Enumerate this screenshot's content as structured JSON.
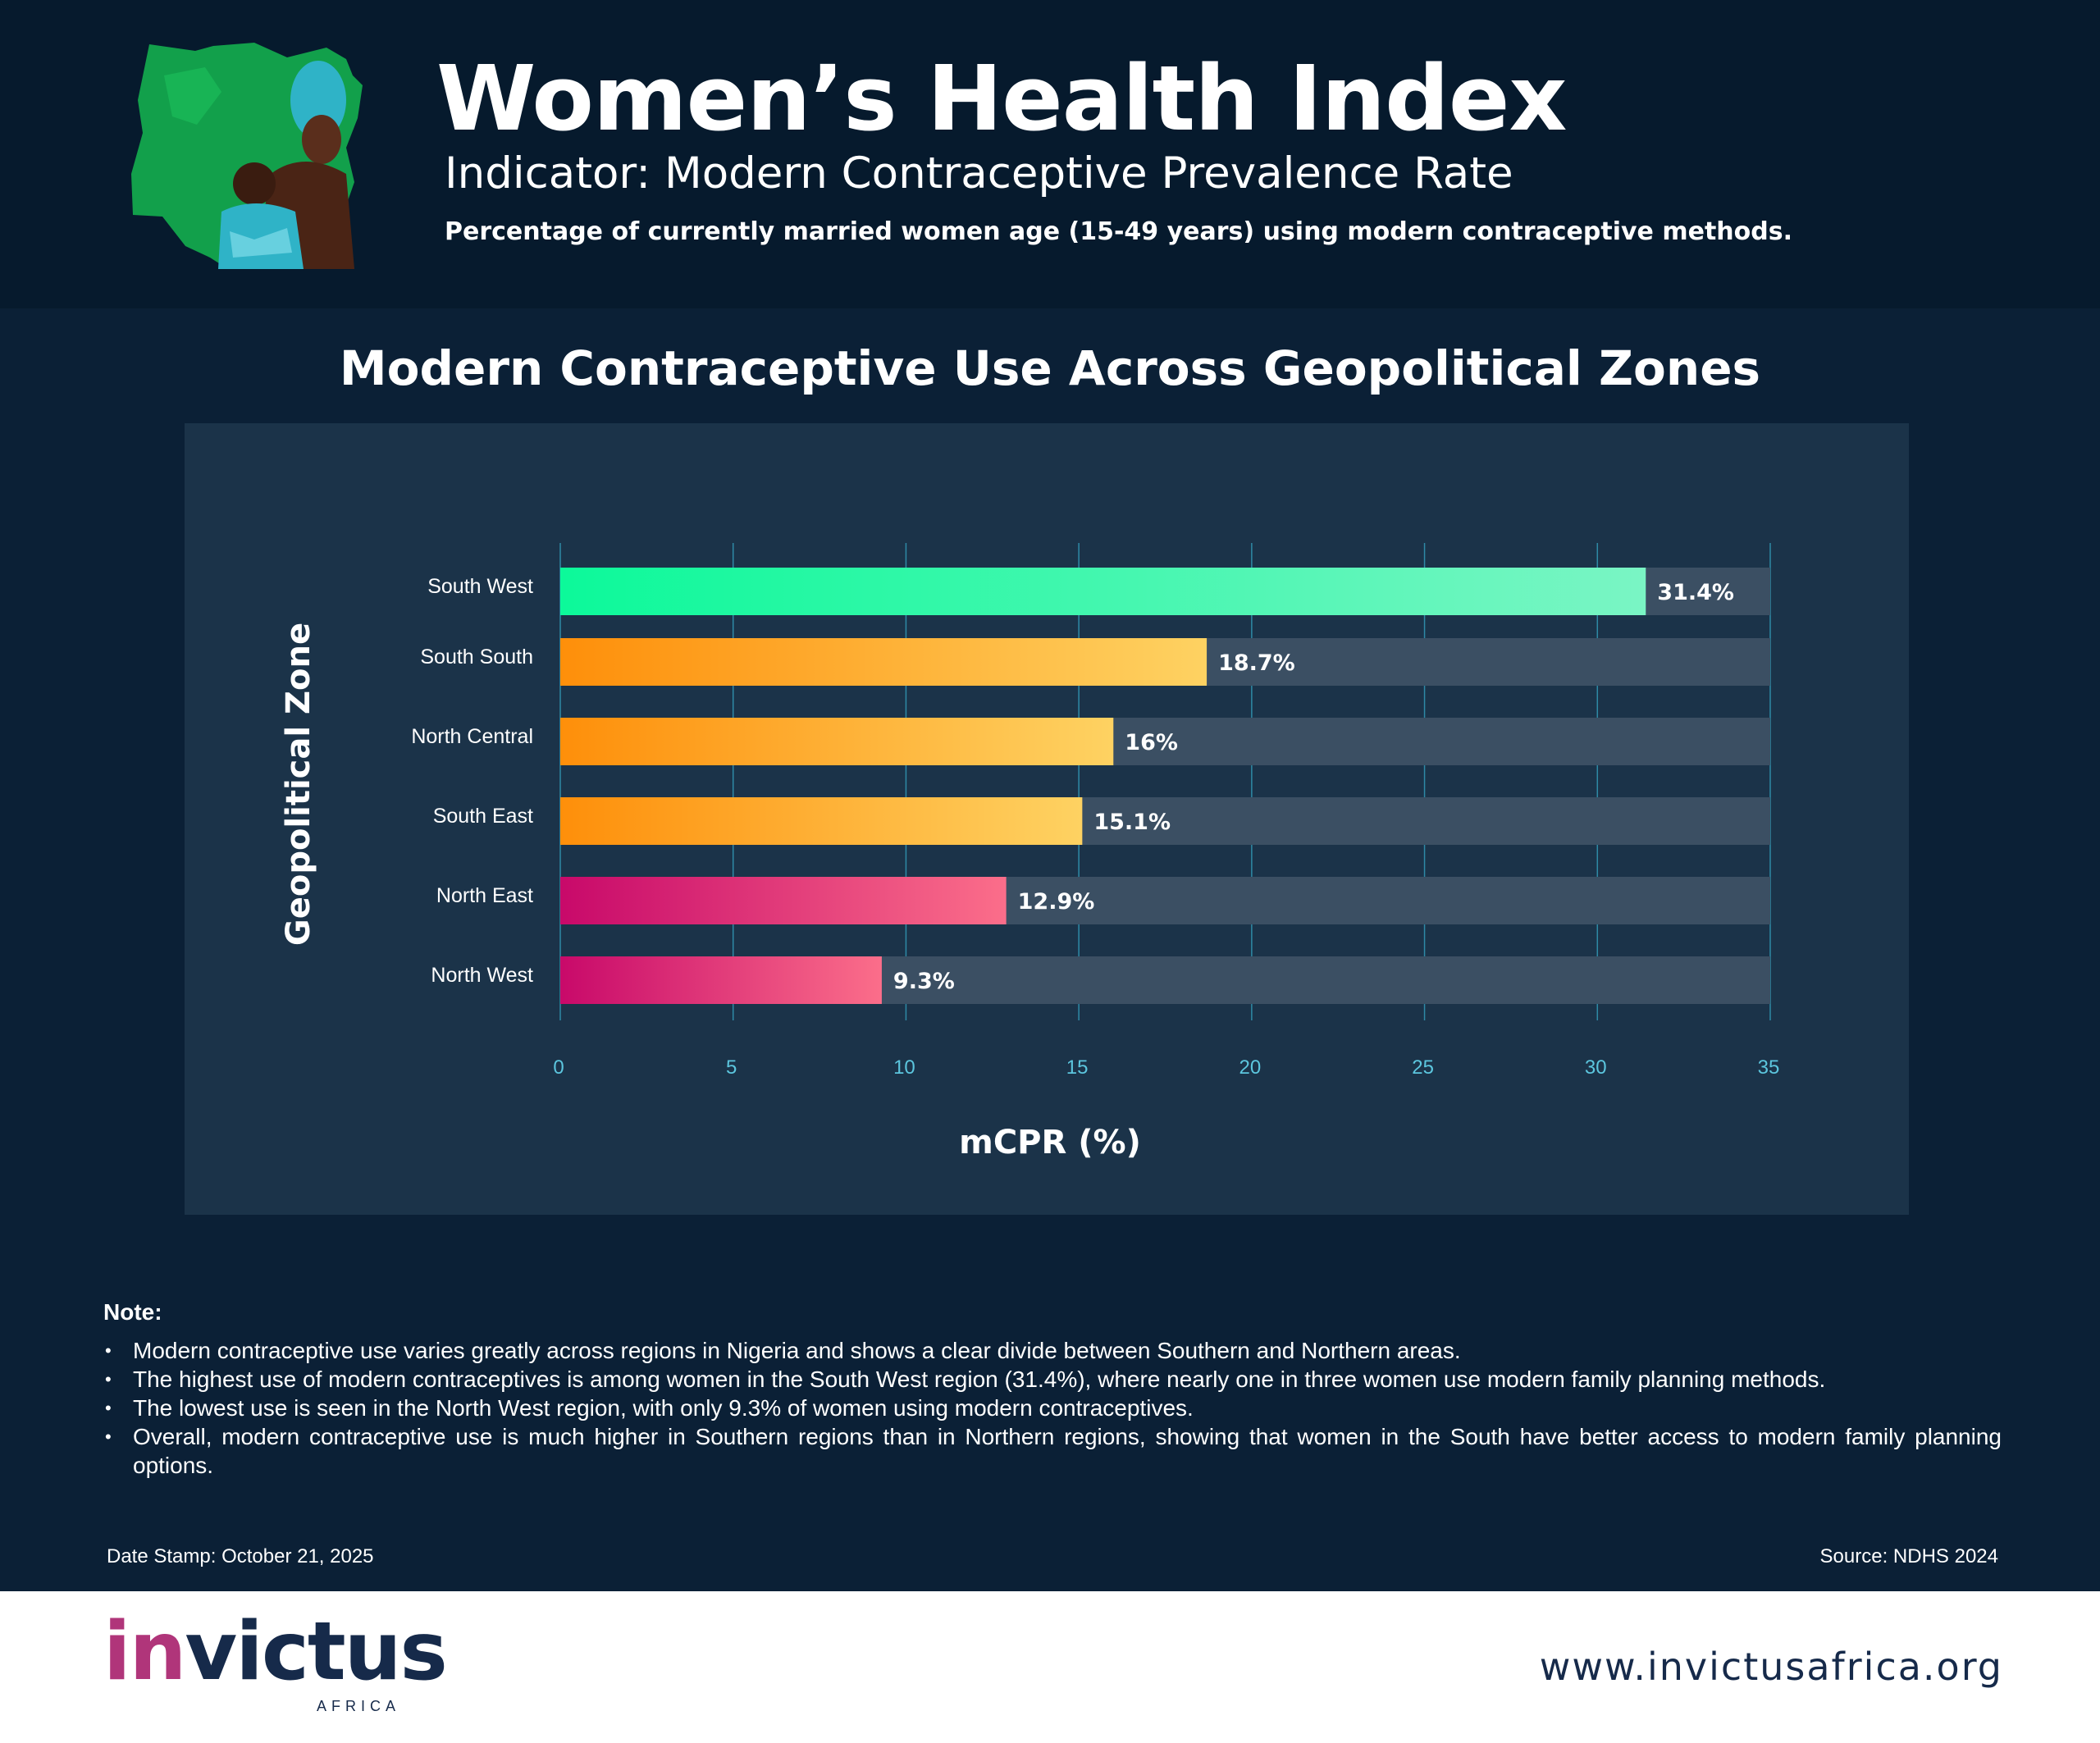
{
  "header": {
    "title": "Women’s Health Index",
    "indicator": "Indicator: Modern Contraceptive Prevalence Rate",
    "description": "Percentage of currently married women age (15-49 years) using modern contraceptive methods."
  },
  "chart_data": {
    "type": "bar",
    "orientation": "horizontal",
    "title": "Modern Contraceptive Use Across Geopolitical Zones",
    "xlabel": "mCPR (%)",
    "ylabel": "Geopolitical Zone",
    "xlim": [
      0,
      35
    ],
    "xticks": [
      "0",
      "5",
      "10",
      "15",
      "20",
      "25",
      "30",
      "35"
    ],
    "categories": [
      "South West",
      "South South",
      "North Central",
      "South East",
      "North East",
      "North West"
    ],
    "values": [
      31.4,
      18.7,
      16,
      15.1,
      12.9,
      9.3
    ],
    "value_labels": [
      "31.4%",
      "18.7%",
      "16%",
      "15.1%",
      "12.9%",
      "9.3%"
    ],
    "grid": true,
    "colors": {
      "track": "#3b4f63",
      "gridline": "#2e8aa6",
      "tick_label": "#5cc6de",
      "high_start": "#0cf99a",
      "high_end": "#7af5c4",
      "mid_start": "#fe8f0a",
      "mid_end": "#fed262",
      "low_start": "#c8096a",
      "low_end": "#fb6e8a"
    }
  },
  "notes": {
    "heading": "Note:",
    "items": [
      "Modern contraceptive use varies greatly across regions in Nigeria and shows a clear divide between Southern and Northern areas.",
      "The highest use of modern contraceptives is among women in the South West region (31.4%), where nearly one in three women use modern family planning methods.",
      "The lowest use is seen in the North West region, with only 9.3% of women using modern contraceptives.",
      "Overall, modern contraceptive use is much higher in Southern regions than in Northern regions, showing that women in the South have better access to modern family planning options."
    ]
  },
  "date_stamp": "Date Stamp: October 21, 2025",
  "source": "Source: NDHS 2024",
  "footer": {
    "brand_accent": "in",
    "brand_rest": "victus",
    "brand_sub": "AFRICA",
    "website": "www.invictusafrica.org"
  }
}
